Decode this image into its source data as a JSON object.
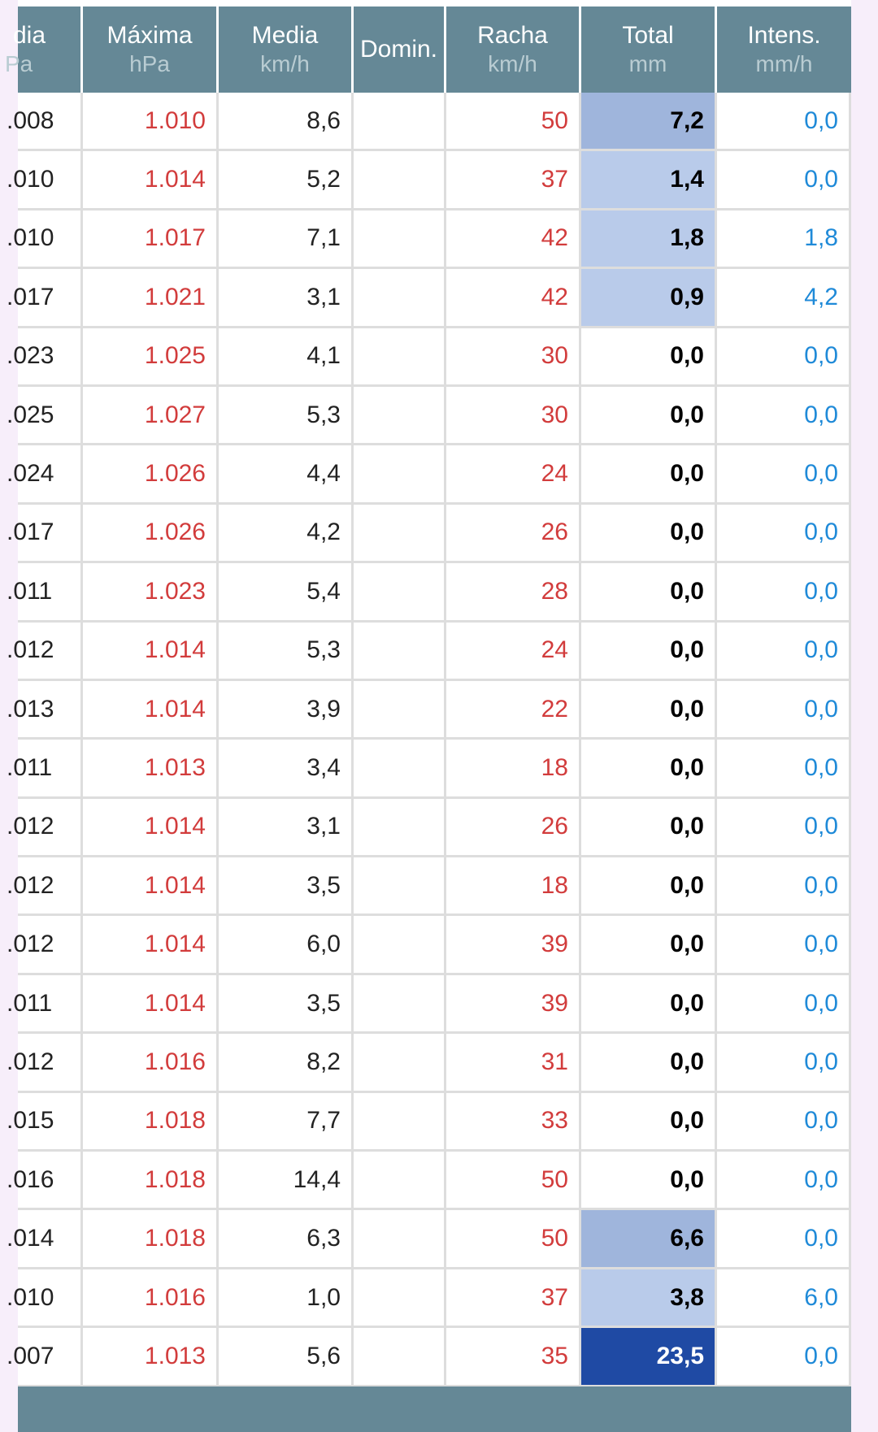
{
  "table": {
    "headers": [
      {
        "name": "dia",
        "unit": "Pa"
      },
      {
        "name": "Máxima",
        "unit": "hPa"
      },
      {
        "name": "Media",
        "unit": "km/h"
      },
      {
        "name": "Domin.",
        "unit": ""
      },
      {
        "name": "Racha",
        "unit": "km/h"
      },
      {
        "name": "Total",
        "unit": "mm"
      },
      {
        "name": "Intens.",
        "unit": "mm/h"
      }
    ],
    "rows": [
      {
        "pmed": ".008",
        "pmax": "1.010",
        "wmed": "8,6",
        "wdom": "",
        "gust": "50",
        "total": "7,2",
        "intens": "0,0",
        "level": "r1"
      },
      {
        "pmed": ".010",
        "pmax": "1.014",
        "wmed": "5,2",
        "wdom": "",
        "gust": "37",
        "total": "1,4",
        "intens": "0,0",
        "level": "r2"
      },
      {
        "pmed": ".010",
        "pmax": "1.017",
        "wmed": "7,1",
        "wdom": "",
        "gust": "42",
        "total": "1,8",
        "intens": "1,8",
        "level": "r2"
      },
      {
        "pmed": ".017",
        "pmax": "1.021",
        "wmed": "3,1",
        "wdom": "",
        "gust": "42",
        "total": "0,9",
        "intens": "4,2",
        "level": "r2"
      },
      {
        "pmed": ".023",
        "pmax": "1.025",
        "wmed": "4,1",
        "wdom": "",
        "gust": "30",
        "total": "0,0",
        "intens": "0,0",
        "level": ""
      },
      {
        "pmed": ".025",
        "pmax": "1.027",
        "wmed": "5,3",
        "wdom": "",
        "gust": "30",
        "total": "0,0",
        "intens": "0,0",
        "level": ""
      },
      {
        "pmed": ".024",
        "pmax": "1.026",
        "wmed": "4,4",
        "wdom": "",
        "gust": "24",
        "total": "0,0",
        "intens": "0,0",
        "level": ""
      },
      {
        "pmed": ".017",
        "pmax": "1.026",
        "wmed": "4,2",
        "wdom": "",
        "gust": "26",
        "total": "0,0",
        "intens": "0,0",
        "level": ""
      },
      {
        "pmed": ".011",
        "pmax": "1.023",
        "wmed": "5,4",
        "wdom": "",
        "gust": "28",
        "total": "0,0",
        "intens": "0,0",
        "level": ""
      },
      {
        "pmed": ".012",
        "pmax": "1.014",
        "wmed": "5,3",
        "wdom": "",
        "gust": "24",
        "total": "0,0",
        "intens": "0,0",
        "level": ""
      },
      {
        "pmed": ".013",
        "pmax": "1.014",
        "wmed": "3,9",
        "wdom": "",
        "gust": "22",
        "total": "0,0",
        "intens": "0,0",
        "level": ""
      },
      {
        "pmed": ".011",
        "pmax": "1.013",
        "wmed": "3,4",
        "wdom": "",
        "gust": "18",
        "total": "0,0",
        "intens": "0,0",
        "level": ""
      },
      {
        "pmed": ".012",
        "pmax": "1.014",
        "wmed": "3,1",
        "wdom": "",
        "gust": "26",
        "total": "0,0",
        "intens": "0,0",
        "level": ""
      },
      {
        "pmed": ".012",
        "pmax": "1.014",
        "wmed": "3,5",
        "wdom": "",
        "gust": "18",
        "total": "0,0",
        "intens": "0,0",
        "level": ""
      },
      {
        "pmed": ".012",
        "pmax": "1.014",
        "wmed": "6,0",
        "wdom": "",
        "gust": "39",
        "total": "0,0",
        "intens": "0,0",
        "level": ""
      },
      {
        "pmed": ".011",
        "pmax": "1.014",
        "wmed": "3,5",
        "wdom": "",
        "gust": "39",
        "total": "0,0",
        "intens": "0,0",
        "level": ""
      },
      {
        "pmed": ".012",
        "pmax": "1.016",
        "wmed": "8,2",
        "wdom": "",
        "gust": "31",
        "total": "0,0",
        "intens": "0,0",
        "level": ""
      },
      {
        "pmed": ".015",
        "pmax": "1.018",
        "wmed": "7,7",
        "wdom": "",
        "gust": "33",
        "total": "0,0",
        "intens": "0,0",
        "level": ""
      },
      {
        "pmed": ".016",
        "pmax": "1.018",
        "wmed": "14,4",
        "wdom": "",
        "gust": "50",
        "total": "0,0",
        "intens": "0,0",
        "level": ""
      },
      {
        "pmed": ".014",
        "pmax": "1.018",
        "wmed": "6,3",
        "wdom": "",
        "gust": "50",
        "total": "6,6",
        "intens": "0,0",
        "level": "r1"
      },
      {
        "pmed": ".010",
        "pmax": "1.016",
        "wmed": "1,0",
        "wdom": "",
        "gust": "37",
        "total": "3,8",
        "intens": "6,0",
        "level": "r2"
      },
      {
        "pmed": ".007",
        "pmax": "1.013",
        "wmed": "5,6",
        "wdom": "",
        "gust": "35",
        "total": "23,5",
        "intens": "0,0",
        "level": "r3"
      }
    ]
  },
  "colors": {
    "header_bg": "#658896",
    "pressure_max": "#d23c3c",
    "gust": "#d23c3c",
    "intensity": "#1f8ad8",
    "rain_level_high": "#1f4aa4",
    "rain_level_mid": "#9fb5dc",
    "rain_level_low": "#b9cbea"
  }
}
